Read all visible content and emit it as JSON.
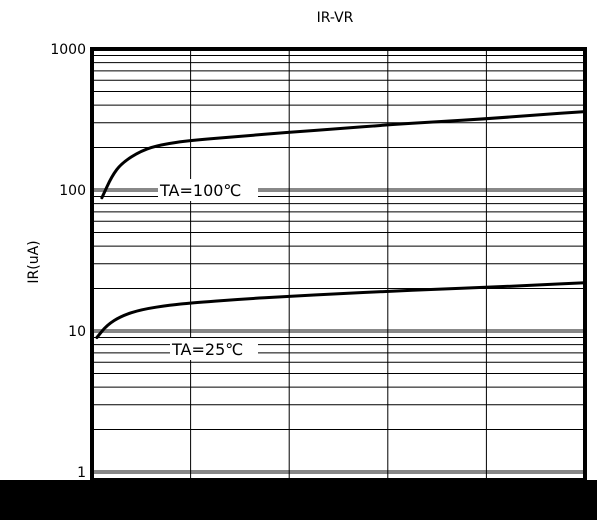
{
  "chart_data": {
    "type": "line",
    "title": "IR-VR",
    "xlabel": "",
    "ylabel": "IR(uA)",
    "y_scale": "log",
    "ylim": [
      0.3,
      1000
    ],
    "xlim": [
      0,
      50
    ],
    "grid": true,
    "y_tick_labels": [
      "1000",
      "100",
      "10",
      "1"
    ],
    "y_tick_values": [
      1000,
      100,
      10,
      1
    ],
    "series": [
      {
        "name": "TA=100℃",
        "x": [
          1,
          2,
          3,
          5,
          7,
          10,
          15,
          20,
          25,
          30,
          35,
          40,
          45,
          50
        ],
        "y": [
          88,
          125,
          155,
          190,
          210,
          225,
          240,
          257,
          272,
          290,
          305,
          320,
          340,
          360
        ]
      },
      {
        "name": "TA=25℃",
        "x": [
          0.5,
          1.5,
          3,
          5,
          8,
          10,
          15,
          20,
          25,
          30,
          35,
          40,
          45,
          50
        ],
        "y": [
          9,
          11,
          12.8,
          14.2,
          15.3,
          15.8,
          16.8,
          17.6,
          18.4,
          19.1,
          19.8,
          20.4,
          21.2,
          22
        ]
      }
    ],
    "colors": {
      "curve": "#000000",
      "major_grid": "#888888",
      "grid": "#000000",
      "frame": "#000000"
    }
  }
}
